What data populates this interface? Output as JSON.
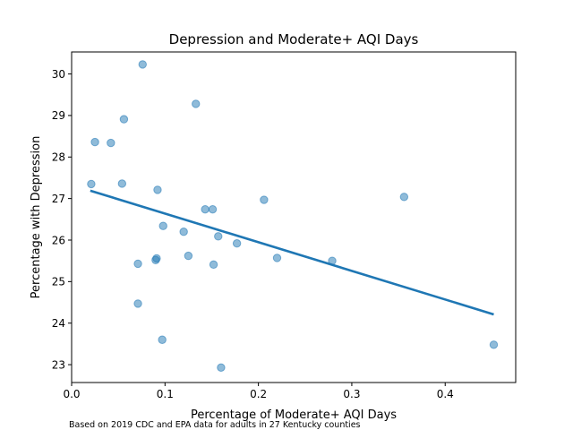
{
  "chart_data": {
    "type": "scatter",
    "title": "Depression and Moderate+ AQI Days",
    "xlabel": "Percentage of Moderate+ AQI Days",
    "ylabel": "Percentage with Depression",
    "xlim": [
      0.0,
      0.4755
    ],
    "ylim": [
      22.57,
      30.53
    ],
    "xticks": [
      0.0,
      0.1,
      0.2,
      0.3,
      0.4
    ],
    "xtick_labels": [
      "0.0",
      "0.1",
      "0.2",
      "0.3",
      "0.4"
    ],
    "yticks": [
      23,
      24,
      25,
      26,
      27,
      28,
      29,
      30
    ],
    "ytick_labels": [
      "23",
      "24",
      "25",
      "26",
      "27",
      "28",
      "29",
      "30"
    ],
    "grid": false,
    "points": [
      {
        "x": 0.021,
        "y": 27.35
      },
      {
        "x": 0.025,
        "y": 28.36
      },
      {
        "x": 0.042,
        "y": 28.34
      },
      {
        "x": 0.054,
        "y": 27.36
      },
      {
        "x": 0.056,
        "y": 28.91
      },
      {
        "x": 0.071,
        "y": 25.43
      },
      {
        "x": 0.071,
        "y": 24.47
      },
      {
        "x": 0.076,
        "y": 30.23
      },
      {
        "x": 0.09,
        "y": 25.52
      },
      {
        "x": 0.091,
        "y": 25.56
      },
      {
        "x": 0.092,
        "y": 27.21
      },
      {
        "x": 0.097,
        "y": 23.6
      },
      {
        "x": 0.098,
        "y": 26.34
      },
      {
        "x": 0.12,
        "y": 26.2
      },
      {
        "x": 0.125,
        "y": 25.62
      },
      {
        "x": 0.133,
        "y": 29.28
      },
      {
        "x": 0.143,
        "y": 26.74
      },
      {
        "x": 0.151,
        "y": 26.74
      },
      {
        "x": 0.152,
        "y": 25.41
      },
      {
        "x": 0.157,
        "y": 26.09
      },
      {
        "x": 0.16,
        "y": 22.93
      },
      {
        "x": 0.177,
        "y": 25.92
      },
      {
        "x": 0.206,
        "y": 26.97
      },
      {
        "x": 0.22,
        "y": 25.57
      },
      {
        "x": 0.279,
        "y": 25.5
      },
      {
        "x": 0.356,
        "y": 27.04
      },
      {
        "x": 0.452,
        "y": 23.48
      }
    ],
    "trendline": {
      "x": [
        0.02,
        0.452
      ],
      "y": [
        27.19,
        24.21
      ]
    },
    "colors": {
      "points": "#1f77b4",
      "trendline": "#1f77b4"
    }
  },
  "caption": "Based on 2019 CDC and EPA data for adults in 27 Kentucky counties"
}
